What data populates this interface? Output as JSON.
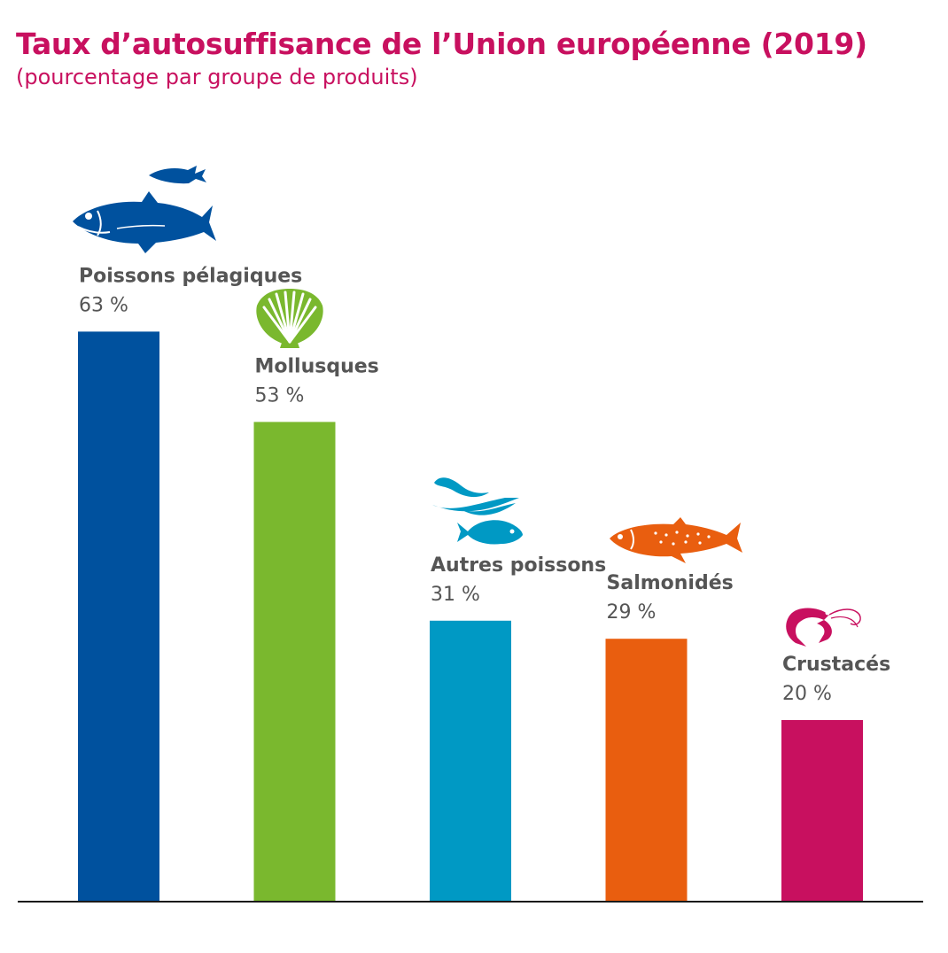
{
  "header": {
    "title": "Taux d’autosuffisance de l’Union européenne (2019)",
    "subtitle": "(pourcentage par groupe de produits)"
  },
  "chart_data": {
    "type": "bar",
    "title": "Taux d’autosuffisance de l’Union européenne (2019)",
    "subtitle": "(pourcentage par groupe de produits)",
    "categories": [
      "Poissons pélagiques",
      "Mollusques",
      "Autres poissons",
      "Salmonidés",
      "Crustacés"
    ],
    "values": [
      63,
      53,
      31,
      29,
      20
    ],
    "value_labels": [
      "63 %",
      "53 %",
      "31 %",
      "29 %",
      "20 %"
    ],
    "colors": [
      "#00519e",
      "#7ab82e",
      "#0099c4",
      "#e95e0f",
      "#c8105f"
    ],
    "icons": [
      "pelagic-fish-icon",
      "scallop-shell-icon",
      "other-fish-icon",
      "salmon-icon",
      "shrimp-icon"
    ],
    "xlabel": "",
    "ylabel": "",
    "ylim": [
      0,
      100
    ],
    "grid": false,
    "legend": "none"
  }
}
